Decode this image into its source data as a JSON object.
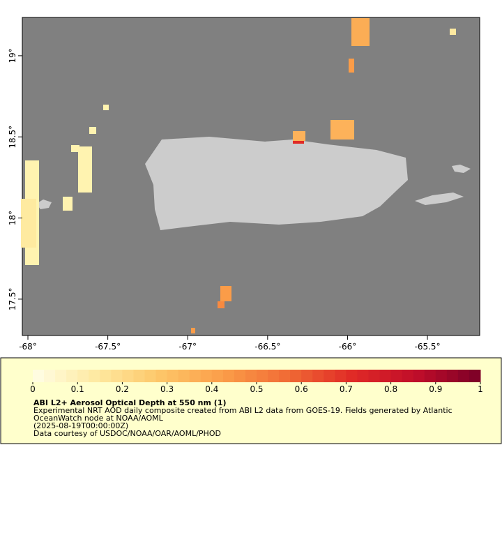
{
  "chart_data": {
    "type": "map",
    "xlim": [
      -68.035,
      -65.173
    ],
    "ylim": [
      17.276,
      19.236
    ],
    "xticks": [
      {
        "value": -68,
        "label": "-68°"
      },
      {
        "value": -67.5,
        "label": "-67.5°"
      },
      {
        "value": -67,
        "label": "-67°"
      },
      {
        "value": -66.5,
        "label": "-66.5°"
      },
      {
        "value": -66,
        "label": "-66°"
      },
      {
        "value": -65.5,
        "label": "-65.5°"
      }
    ],
    "yticks": [
      {
        "value": 17.5,
        "label": "17.5°"
      },
      {
        "value": 18,
        "label": "18°"
      },
      {
        "value": 18.5,
        "label": "18.5°"
      },
      {
        "value": 19,
        "label": "19°"
      }
    ],
    "colorbar": {
      "lim": [
        0,
        1
      ],
      "ticks": [
        0,
        0.1,
        0.2,
        0.3,
        0.4,
        0.5,
        0.6,
        0.7,
        0.8,
        0.9,
        1
      ],
      "colors": [
        "#fffee6",
        "#fee9a0",
        "#fdc668",
        "#fb9c48",
        "#f06a35",
        "#e02a26",
        "#c00d2a",
        "#7a0027"
      ]
    },
    "legend": {
      "title": "ABI L2+ Aerosol Optical Depth at 550 nm (1)",
      "lines": [
        "Experimental NRT AOD daily composite created from ABI L2 data from GOES-19. Fields generated by Atlantic",
        "OceanWatch node at NOAA/AOML",
        "(2025-08-19T00:00:00Z)",
        "Data courtesy of USDOC/NOAA/OAR/AOML/PHOD"
      ]
    }
  }
}
